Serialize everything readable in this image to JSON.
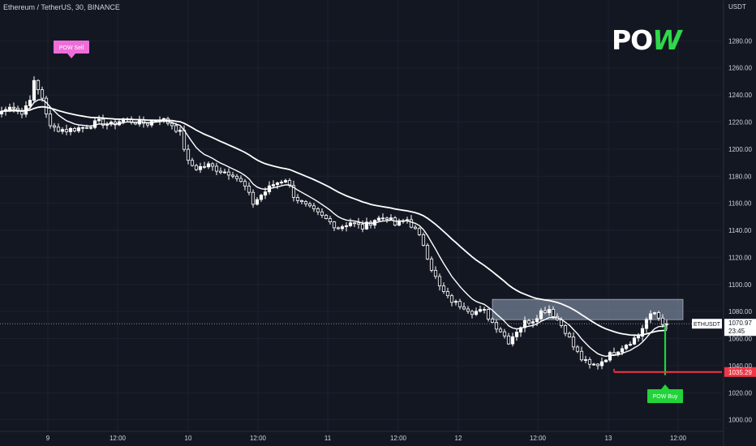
{
  "header": {
    "symbol_title": "Ethereum / TetherUS, 30, BINANCE",
    "price_unit": "USDT"
  },
  "logo": {
    "text_main": "PO",
    "text_accent": "W",
    "accent_color": "#2fd84a"
  },
  "signals": {
    "sell": {
      "label": "POW Sell",
      "color": "#ee6ed8"
    },
    "buy": {
      "label": "POW Buy",
      "color": "#22d33a"
    }
  },
  "last_price_tag": {
    "symbol": "ETHUSDT",
    "price": "1070.97",
    "countdown": "23:45"
  },
  "stop_price_tag": {
    "price": "1035.29",
    "color": "#f23645"
  },
  "chart_data": {
    "type": "candlestick",
    "title": "Ethereum / TetherUS, 30, BINANCE",
    "ylabel": "USDT",
    "ylim": [
      995,
      1291
    ],
    "yticks": [
      1000,
      1020,
      1040,
      1060,
      1080,
      1100,
      1120,
      1140,
      1160,
      1180,
      1200,
      1220,
      1240,
      1260,
      1280
    ],
    "xticks": [
      "9",
      "12:00",
      "10",
      "12:00",
      "11",
      "12:00",
      "12",
      "12:00",
      "13",
      "12:00"
    ],
    "candle_interval": "30",
    "close_path": [
      [
        0,
        1228
      ],
      [
        3,
        1232
      ],
      [
        5,
        1226
      ],
      [
        7,
        1238
      ],
      [
        8,
        1249
      ],
      [
        10,
        1238
      ],
      [
        12,
        1216
      ],
      [
        16,
        1214
      ],
      [
        20,
        1216
      ],
      [
        24,
        1220
      ],
      [
        27,
        1218
      ],
      [
        30,
        1222
      ],
      [
        33,
        1220
      ],
      [
        36,
        1219
      ],
      [
        39,
        1223
      ],
      [
        42,
        1218
      ],
      [
        44,
        1212
      ],
      [
        46,
        1190
      ],
      [
        48,
        1186
      ],
      [
        51,
        1188
      ],
      [
        54,
        1184
      ],
      [
        57,
        1182
      ],
      [
        60,
        1172
      ],
      [
        62,
        1160
      ],
      [
        64,
        1166
      ],
      [
        67,
        1174
      ],
      [
        70,
        1178
      ],
      [
        72,
        1166
      ],
      [
        74,
        1160
      ],
      [
        77,
        1154
      ],
      [
        80,
        1148
      ],
      [
        83,
        1142
      ],
      [
        86,
        1146
      ],
      [
        89,
        1142
      ],
      [
        92,
        1148
      ],
      [
        95,
        1150
      ],
      [
        97,
        1144
      ],
      [
        100,
        1148
      ],
      [
        102,
        1140
      ],
      [
        104,
        1130
      ],
      [
        106,
        1112
      ],
      [
        108,
        1098
      ],
      [
        110,
        1090
      ],
      [
        112,
        1086
      ],
      [
        114,
        1084
      ],
      [
        116,
        1080
      ],
      [
        119,
        1080
      ],
      [
        121,
        1072
      ],
      [
        123,
        1066
      ],
      [
        125,
        1058
      ],
      [
        127,
        1066
      ],
      [
        129,
        1072
      ],
      [
        131,
        1074
      ],
      [
        133,
        1080
      ],
      [
        135,
        1082
      ],
      [
        137,
        1074
      ],
      [
        139,
        1066
      ],
      [
        141,
        1054
      ],
      [
        143,
        1045
      ],
      [
        145,
        1040
      ],
      [
        147,
        1041
      ],
      [
        149,
        1046
      ],
      [
        151,
        1050
      ],
      [
        153,
        1054
      ],
      [
        155,
        1058
      ],
      [
        157,
        1062
      ],
      [
        159,
        1074
      ],
      [
        161,
        1079
      ],
      [
        163,
        1072
      ],
      [
        164,
        1071
      ]
    ],
    "moving_averages": [
      {
        "name": "",
        "period": 9
      },
      {
        "name": "",
        "period": 34
      }
    ],
    "annotations": [
      {
        "type": "sell_signal",
        "label": "POW Sell",
        "index": 8,
        "price": 1249
      },
      {
        "type": "buy_signal",
        "label": "POW Buy",
        "index": 161,
        "price": 1033
      },
      {
        "type": "resistance_zone",
        "price_low": 1074,
        "price_high": 1089,
        "index_start": 121,
        "index_end": 168
      },
      {
        "type": "stop_line",
        "price": 1035.29,
        "index_start": 151
      },
      {
        "type": "last_price",
        "price": 1070.97
      }
    ]
  }
}
